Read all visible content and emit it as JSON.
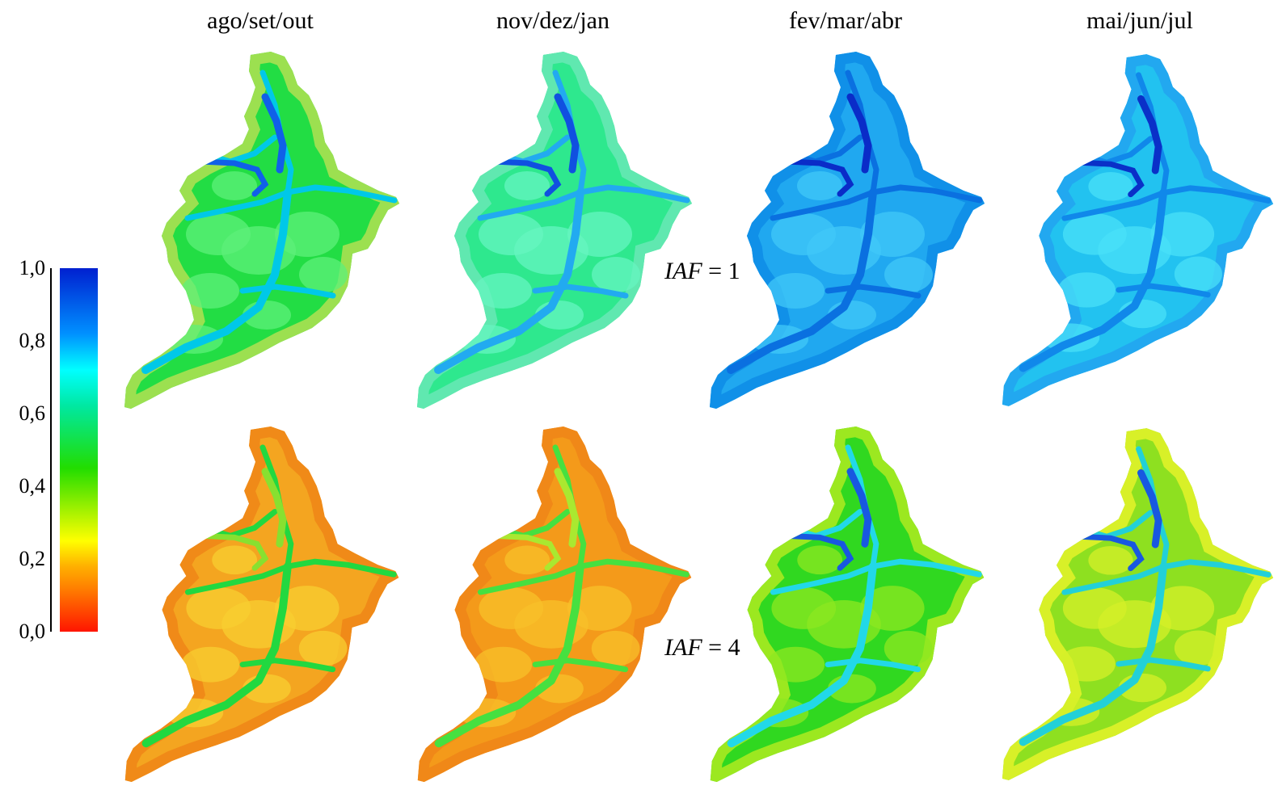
{
  "columns": [
    "ago/set/out",
    "nov/dez/jan",
    "fev/mar/abr",
    "mai/jun/jul"
  ],
  "rows": [
    {
      "var": "IAF",
      "value": "1"
    },
    {
      "var": "IAF",
      "value": "4"
    }
  ],
  "colorbar": {
    "ticks": [
      "1,0",
      "0,8",
      "0,6",
      "0,4",
      "0,2",
      "0,0"
    ],
    "min": 0.0,
    "max": 1.0,
    "colors": [
      "#ff1500",
      "#ff8000",
      "#ffff00",
      "#22dd00",
      "#00ffff",
      "#0020d0"
    ]
  },
  "maps": [
    [
      {
        "base": "#22dd44",
        "light": "#5ef07a",
        "channel": "#00c8e8",
        "deep": "#1060e8",
        "edge": "#9ce050",
        "level": 0.55
      },
      {
        "base": "#2ee88e",
        "light": "#66f5c0",
        "channel": "#22aaf0",
        "deep": "#1050e0",
        "edge": "#60e8b0",
        "level": 0.62
      },
      {
        "base": "#20a8f0",
        "light": "#40c8f8",
        "channel": "#0a70e0",
        "deep": "#0a2cc8",
        "edge": "#1090e8",
        "level": 0.8
      },
      {
        "base": "#22c2f0",
        "light": "#4ae0f8",
        "channel": "#1088ea",
        "deep": "#0a30c8",
        "edge": "#22a8f0",
        "level": 0.74
      }
    ],
    [
      {
        "base": "#f4a520",
        "light": "#f8cf30",
        "channel": "#22d840",
        "deep": "#88e030",
        "edge": "#f08a18",
        "level": 0.2
      },
      {
        "base": "#f49a1a",
        "light": "#f8c02a",
        "channel": "#46e040",
        "deep": "#aae830",
        "edge": "#f08818",
        "level": 0.17
      },
      {
        "base": "#30d820",
        "light": "#8ee820",
        "channel": "#22d8e8",
        "deep": "#1858e0",
        "edge": "#9ce820",
        "level": 0.45
      },
      {
        "base": "#8ee020",
        "light": "#d6f028",
        "channel": "#22d0d8",
        "deep": "#1858e0",
        "edge": "#d8f028",
        "level": 0.35
      }
    ]
  ]
}
